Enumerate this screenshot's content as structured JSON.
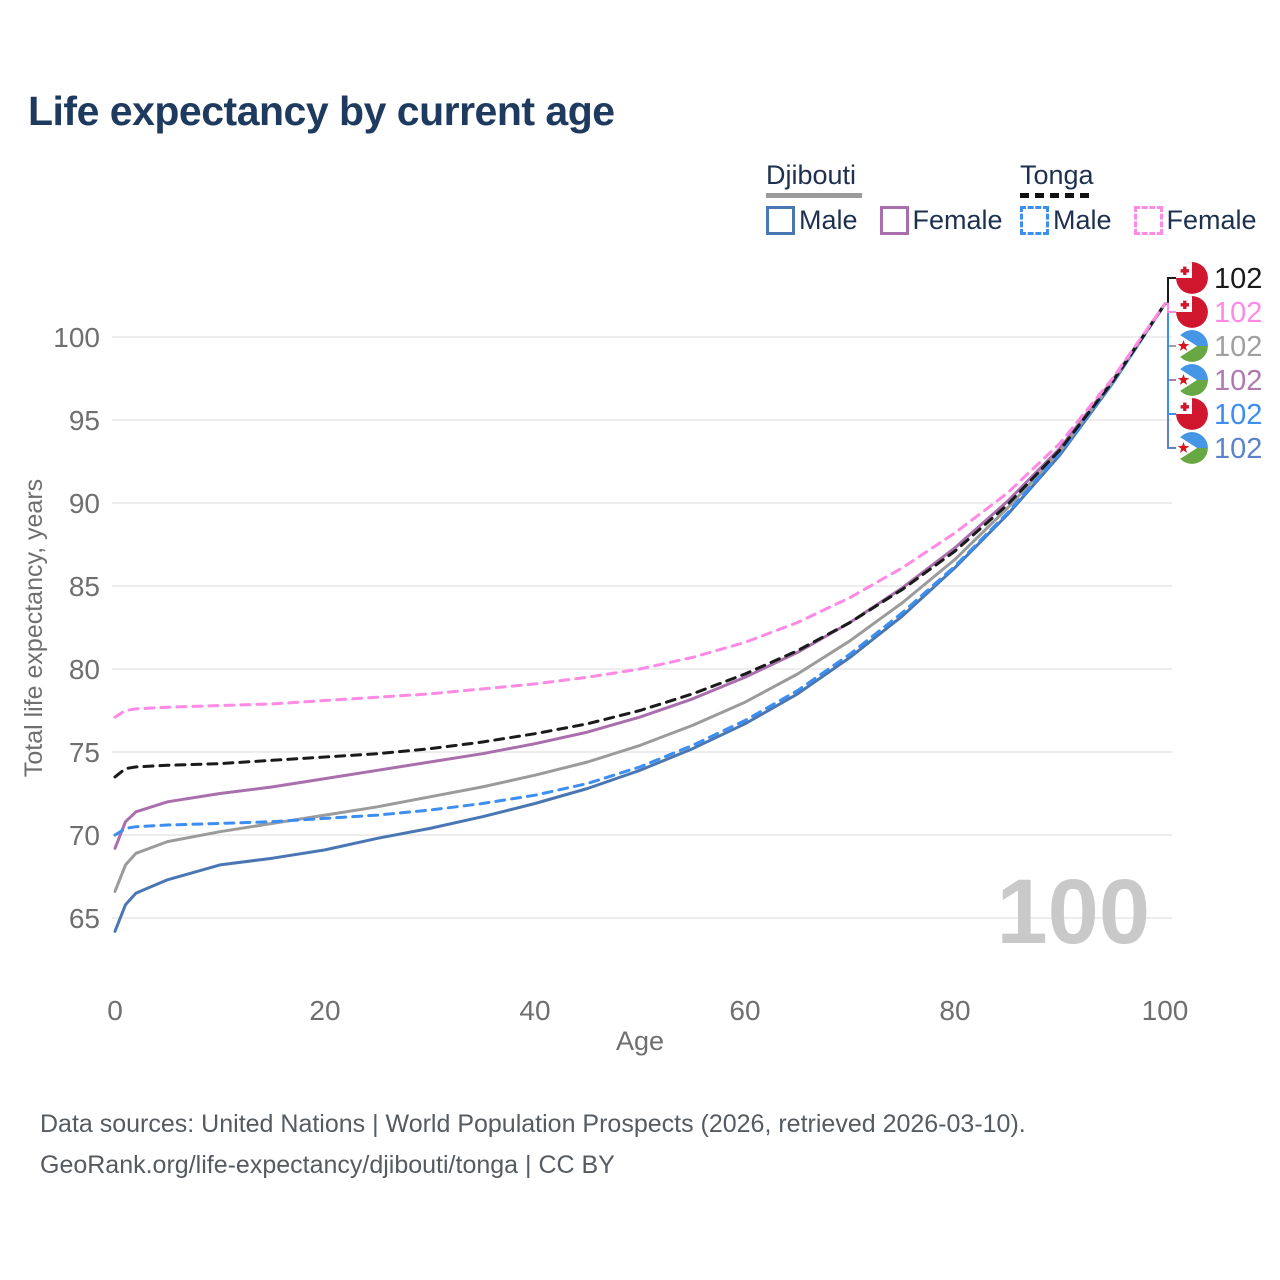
{
  "title": "Life expectancy by current age",
  "watermark": "100",
  "colors": {
    "title": "#1e3a5f",
    "legend_text": "#1e3050",
    "axis_text": "#6f6f6f",
    "grid": "#e7e7e7",
    "footer_text": "#555b61",
    "watermark": "#c9c9c9",
    "djibouti_male": "#4a77b4",
    "djibouti_female": "#a96fad",
    "djibouti_total": "#9b9b9b",
    "tonga_male": "#3c8ef0",
    "tonga_female": "#fd8ae4",
    "tonga_total": "#1a1a1a",
    "flag_tonga_red": "#d0172e",
    "flag_djibouti_blue": "#4596e5",
    "flag_djibouti_green": "#68a844",
    "flag_star_red": "#d7141a"
  },
  "legend": {
    "groups": [
      {
        "country": "Djibouti",
        "underline_style": "solid",
        "underline_color": "#9b9b9b",
        "items": [
          {
            "label": "Male",
            "color": "#4a77b4",
            "dashed": false
          },
          {
            "label": "Female",
            "color": "#a96fad",
            "dashed": false
          }
        ]
      },
      {
        "country": "Tonga",
        "underline_style": "dashed",
        "underline_color": "#111111",
        "items": [
          {
            "label": "Male",
            "color": "#3c8ef0",
            "dashed": true
          },
          {
            "label": "Female",
            "color": "#fd8ae4",
            "dashed": true
          }
        ]
      }
    ]
  },
  "chart_data": {
    "type": "line",
    "title": "Life expectancy by current age",
    "xlabel": "Age",
    "ylabel": "Total life expectancy, years",
    "xlim": [
      0,
      100
    ],
    "ylim": [
      63.5,
      102
    ],
    "x_ticks": [
      0,
      20,
      40,
      60,
      80,
      100
    ],
    "y_ticks": [
      65,
      70,
      75,
      80,
      85,
      90,
      95,
      100
    ],
    "grid": "horizontal",
    "legend_position": "top-right",
    "current_age_frame": "100",
    "ages": [
      0,
      1,
      2,
      5,
      10,
      15,
      20,
      25,
      30,
      35,
      40,
      45,
      50,
      55,
      60,
      65,
      70,
      75,
      80,
      85,
      90,
      95,
      100
    ],
    "series": [
      {
        "id": "djibouti-male",
        "country": "Djibouti",
        "sex": "Male",
        "style": "solid",
        "color": "#4a77b4",
        "row": 5,
        "end_label": "102",
        "label_color": "#5b84c8",
        "flag": "djibouti",
        "values": [
          64.2,
          65.8,
          66.5,
          67.3,
          68.2,
          68.6,
          69.1,
          69.8,
          70.4,
          71.1,
          71.9,
          72.8,
          73.9,
          75.2,
          76.7,
          78.5,
          80.7,
          83.2,
          86.1,
          89.3,
          92.9,
          97.2,
          102
        ]
      },
      {
        "id": "djibouti-female",
        "country": "Djibouti",
        "sex": "Female",
        "style": "solid",
        "color": "#a96fad",
        "row": 3,
        "end_label": "102",
        "label_color": "#b07ab0",
        "flag": "djibouti",
        "values": [
          69.2,
          70.8,
          71.4,
          72.0,
          72.5,
          72.9,
          73.4,
          73.9,
          74.4,
          74.9,
          75.5,
          76.2,
          77.1,
          78.2,
          79.5,
          81.0,
          82.8,
          84.9,
          87.3,
          90.1,
          93.3,
          97.4,
          102
        ]
      },
      {
        "id": "djibouti-total",
        "country": "Djibouti",
        "sex": "Both sexes",
        "style": "solid",
        "color": "#9b9b9b",
        "row": 2,
        "end_label": "102",
        "label_color": "#a0a0a0",
        "flag": "djibouti",
        "values": [
          66.6,
          68.2,
          68.9,
          69.6,
          70.2,
          70.7,
          71.2,
          71.7,
          72.3,
          72.9,
          73.6,
          74.4,
          75.4,
          76.6,
          78.0,
          79.7,
          81.7,
          84.0,
          86.6,
          89.7,
          93.1,
          97.3,
          102
        ]
      },
      {
        "id": "tonga-male",
        "country": "Tonga",
        "sex": "Male",
        "style": "dashed",
        "color": "#3c8ef0",
        "row": 4,
        "end_label": "102",
        "label_color": "#3c8ef0",
        "flag": "tonga",
        "values": [
          70.0,
          70.4,
          70.5,
          70.6,
          70.7,
          70.8,
          71.0,
          71.2,
          71.5,
          71.9,
          72.4,
          73.1,
          74.1,
          75.4,
          76.9,
          78.7,
          80.9,
          83.4,
          86.2,
          89.4,
          93.0,
          97.2,
          102
        ]
      },
      {
        "id": "tonga-total",
        "country": "Tonga",
        "sex": "Both sexes",
        "style": "dashed",
        "color": "#1a1a1a",
        "row": 0,
        "end_label": "102",
        "label_color": "#1a1a1a",
        "flag": "tonga",
        "values": [
          73.5,
          74.0,
          74.1,
          74.2,
          74.3,
          74.5,
          74.7,
          74.9,
          75.2,
          75.6,
          76.1,
          76.7,
          77.5,
          78.5,
          79.7,
          81.1,
          82.8,
          84.8,
          87.1,
          89.9,
          93.2,
          97.3,
          102
        ]
      },
      {
        "id": "tonga-female",
        "country": "Tonga",
        "sex": "Female",
        "style": "dashed",
        "color": "#fd8ae4",
        "row": 1,
        "end_label": "102",
        "label_color": "#fd8ae4",
        "flag": "tonga",
        "values": [
          77.1,
          77.5,
          77.6,
          77.7,
          77.8,
          77.9,
          78.1,
          78.3,
          78.5,
          78.8,
          79.1,
          79.5,
          80.0,
          80.7,
          81.6,
          82.8,
          84.3,
          86.1,
          88.2,
          90.6,
          93.6,
          97.5,
          102
        ]
      }
    ]
  },
  "footer": {
    "line1": "Data sources: United Nations | World Population Prospects (2026, retrieved 2026-03-10).",
    "line2": "GeoRank.org/life-expectancy/djibouti/tonga | CC BY"
  }
}
